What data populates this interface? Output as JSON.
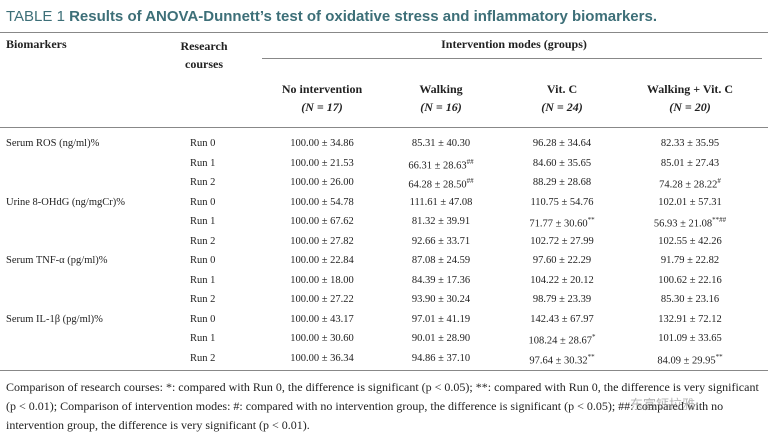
{
  "title": {
    "label": "TABLE 1",
    "text": "Results of ANOVA-Dunnett’s test of oxidative stress and inflammatory biomarkers."
  },
  "table": {
    "header": {
      "biomarkers": "Biomarkers",
      "courses": "Research courses",
      "modes": "Intervention modes (groups)",
      "groups": [
        {
          "name": "No intervention",
          "n": "(N = 17)"
        },
        {
          "name": "Walking",
          "n": "(N = 16)"
        },
        {
          "name": "Vit. C",
          "n": "(N = 24)"
        },
        {
          "name": "Walking + Vit. C",
          "n": "(N = 20)"
        }
      ]
    },
    "sections": [
      {
        "biomarker": "Serum ROS (ng/ml)%",
        "rows": [
          {
            "course": "Run 0",
            "cells": [
              {
                "text": "100.00 ± 34.86"
              },
              {
                "text": "85.31 ± 40.30"
              },
              {
                "text": "96.28 ± 34.64"
              },
              {
                "text": "82.33 ± 35.95"
              }
            ]
          },
          {
            "course": "Run 1",
            "cells": [
              {
                "text": "100.00 ± 21.53"
              },
              {
                "text": "66.31 ± 28.63",
                "sup": "##"
              },
              {
                "text": "84.60 ± 35.65"
              },
              {
                "text": "85.01 ± 27.43"
              }
            ]
          },
          {
            "course": "Run 2",
            "cells": [
              {
                "text": "100.00 ± 26.00"
              },
              {
                "text": "64.28 ± 28.50",
                "sup": "##"
              },
              {
                "text": "88.29 ± 28.68"
              },
              {
                "text": "74.28 ± 28.22",
                "sup": "#"
              }
            ]
          }
        ]
      },
      {
        "biomarker": "Urine 8-OHdG (ng/mgCr)%",
        "rows": [
          {
            "course": "Run 0",
            "cells": [
              {
                "text": "100.00 ± 54.78"
              },
              {
                "text": "111.61 ± 47.08"
              },
              {
                "text": "110.75 ± 54.76"
              },
              {
                "text": "102.01 ± 57.31"
              }
            ]
          },
          {
            "course": "Run 1",
            "cells": [
              {
                "text": "100.00 ± 67.62"
              },
              {
                "text": "81.32 ± 39.91"
              },
              {
                "text": "71.77 ± 30.60",
                "sup": "**"
              },
              {
                "text": "56.93 ± 21.08",
                "sup": "**##"
              }
            ]
          },
          {
            "course": "Run 2",
            "cells": [
              {
                "text": "100.00 ± 27.82"
              },
              {
                "text": "92.66 ± 33.71"
              },
              {
                "text": "102.72 ± 27.99"
              },
              {
                "text": "102.55 ± 42.26"
              }
            ]
          }
        ]
      },
      {
        "biomarker": "Serum TNF-α (pg/ml)%",
        "rows": [
          {
            "course": "Run 0",
            "cells": [
              {
                "text": "100.00 ± 22.84"
              },
              {
                "text": "87.08 ± 24.59"
              },
              {
                "text": "97.60 ± 22.29"
              },
              {
                "text": "91.79 ± 22.82"
              }
            ]
          },
          {
            "course": "Run 1",
            "cells": [
              {
                "text": "100.00 ± 18.00"
              },
              {
                "text": "84.39 ± 17.36"
              },
              {
                "text": "104.22 ± 20.12"
              },
              {
                "text": "100.62 ± 22.16"
              }
            ]
          },
          {
            "course": "Run 2",
            "cells": [
              {
                "text": "100.00 ± 27.22"
              },
              {
                "text": "93.90 ± 30.24"
              },
              {
                "text": "98.79 ± 23.39"
              },
              {
                "text": "85.30 ± 23.16"
              }
            ]
          }
        ]
      },
      {
        "biomarker": "Serum IL-1β (pg/ml)%",
        "rows": [
          {
            "course": "Run 0",
            "cells": [
              {
                "text": "100.00 ± 43.17"
              },
              {
                "text": "97.01 ± 41.19"
              },
              {
                "text": "142.43 ± 67.97"
              },
              {
                "text": "132.91 ± 72.12"
              }
            ]
          },
          {
            "course": "Run 1",
            "cells": [
              {
                "text": "100.00 ± 30.60"
              },
              {
                "text": "90.01 ± 28.90"
              },
              {
                "text": "108.24 ± 28.67",
                "sup": "*"
              },
              {
                "text": "101.09 ± 33.65"
              }
            ]
          },
          {
            "course": "Run 2",
            "cells": [
              {
                "text": "100.00 ± 36.34"
              },
              {
                "text": "94.86 ± 37.10"
              },
              {
                "text": "97.64 ± 30.32",
                "sup": "**"
              },
              {
                "text": "84.09 ± 29.95",
                "sup": "**"
              }
            ]
          }
        ]
      }
    ]
  },
  "footnote": "Comparison of research courses: *: compared with Run 0, the difference is significant (p < 0.05); **: compared with Run 0, the difference is very significant (p < 0.01); Comparison of intervention modes: #: compared with no intervention group, the difference is significant (p < 0.05); ##: compared with no intervention group, the difference is very significant (p < 0.01).",
  "watermark": "东富钙拉雅"
}
